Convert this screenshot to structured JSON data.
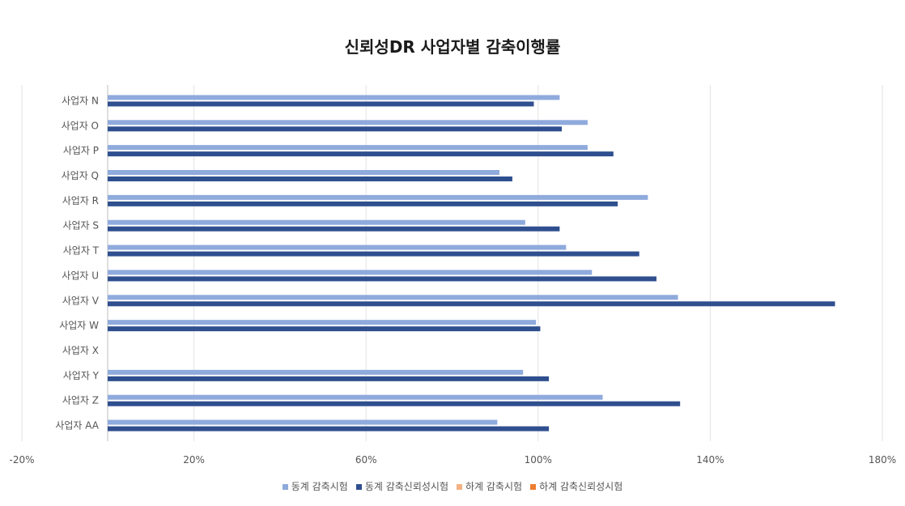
{
  "chart_data": {
    "type": "bar",
    "orientation": "horizontal",
    "title": "신뢰성DR 사업자별 감축이행률",
    "categories": [
      "사업자 N",
      "사업자 O",
      "사업자 P",
      "사업자 Q",
      "사업자 R",
      "사업자 S",
      "사업자 T",
      "사업자 U",
      "사업자 V",
      "사업자 W",
      "사업자 X",
      "사업자 Y",
      "사업자 Z",
      "사업자 AA"
    ],
    "series": [
      {
        "name": "동계 감축시험",
        "color": "#8faadc",
        "values": [
          105,
          111.5,
          111.5,
          91,
          125.5,
          97,
          106.5,
          112.5,
          132.5,
          99.5,
          null,
          96.5,
          115,
          90.5
        ]
      },
      {
        "name": "동계 감축신뢰성시험",
        "color": "#2f4f8f",
        "values": [
          99,
          105.5,
          117.5,
          94,
          118.5,
          105,
          123.5,
          127.5,
          169,
          100.5,
          null,
          102.5,
          133,
          102.5
        ]
      },
      {
        "name": "하계 감축시험",
        "color": "#f4b183",
        "values": [
          null,
          null,
          null,
          null,
          null,
          null,
          null,
          null,
          null,
          null,
          null,
          null,
          null,
          null
        ]
      },
      {
        "name": "하계 감축신뢰성시험",
        "color": "#ed7d31",
        "values": [
          null,
          null,
          null,
          null,
          null,
          null,
          null,
          null,
          null,
          null,
          null,
          null,
          null,
          null
        ]
      }
    ],
    "xlim": [
      -20,
      180
    ],
    "xticks": [
      "-20%",
      "20%",
      "60%",
      "100%",
      "140%",
      "180%"
    ],
    "xtick_values": [
      -20,
      20,
      60,
      100,
      140,
      180
    ],
    "grid": true,
    "legend_position": "bottom"
  }
}
